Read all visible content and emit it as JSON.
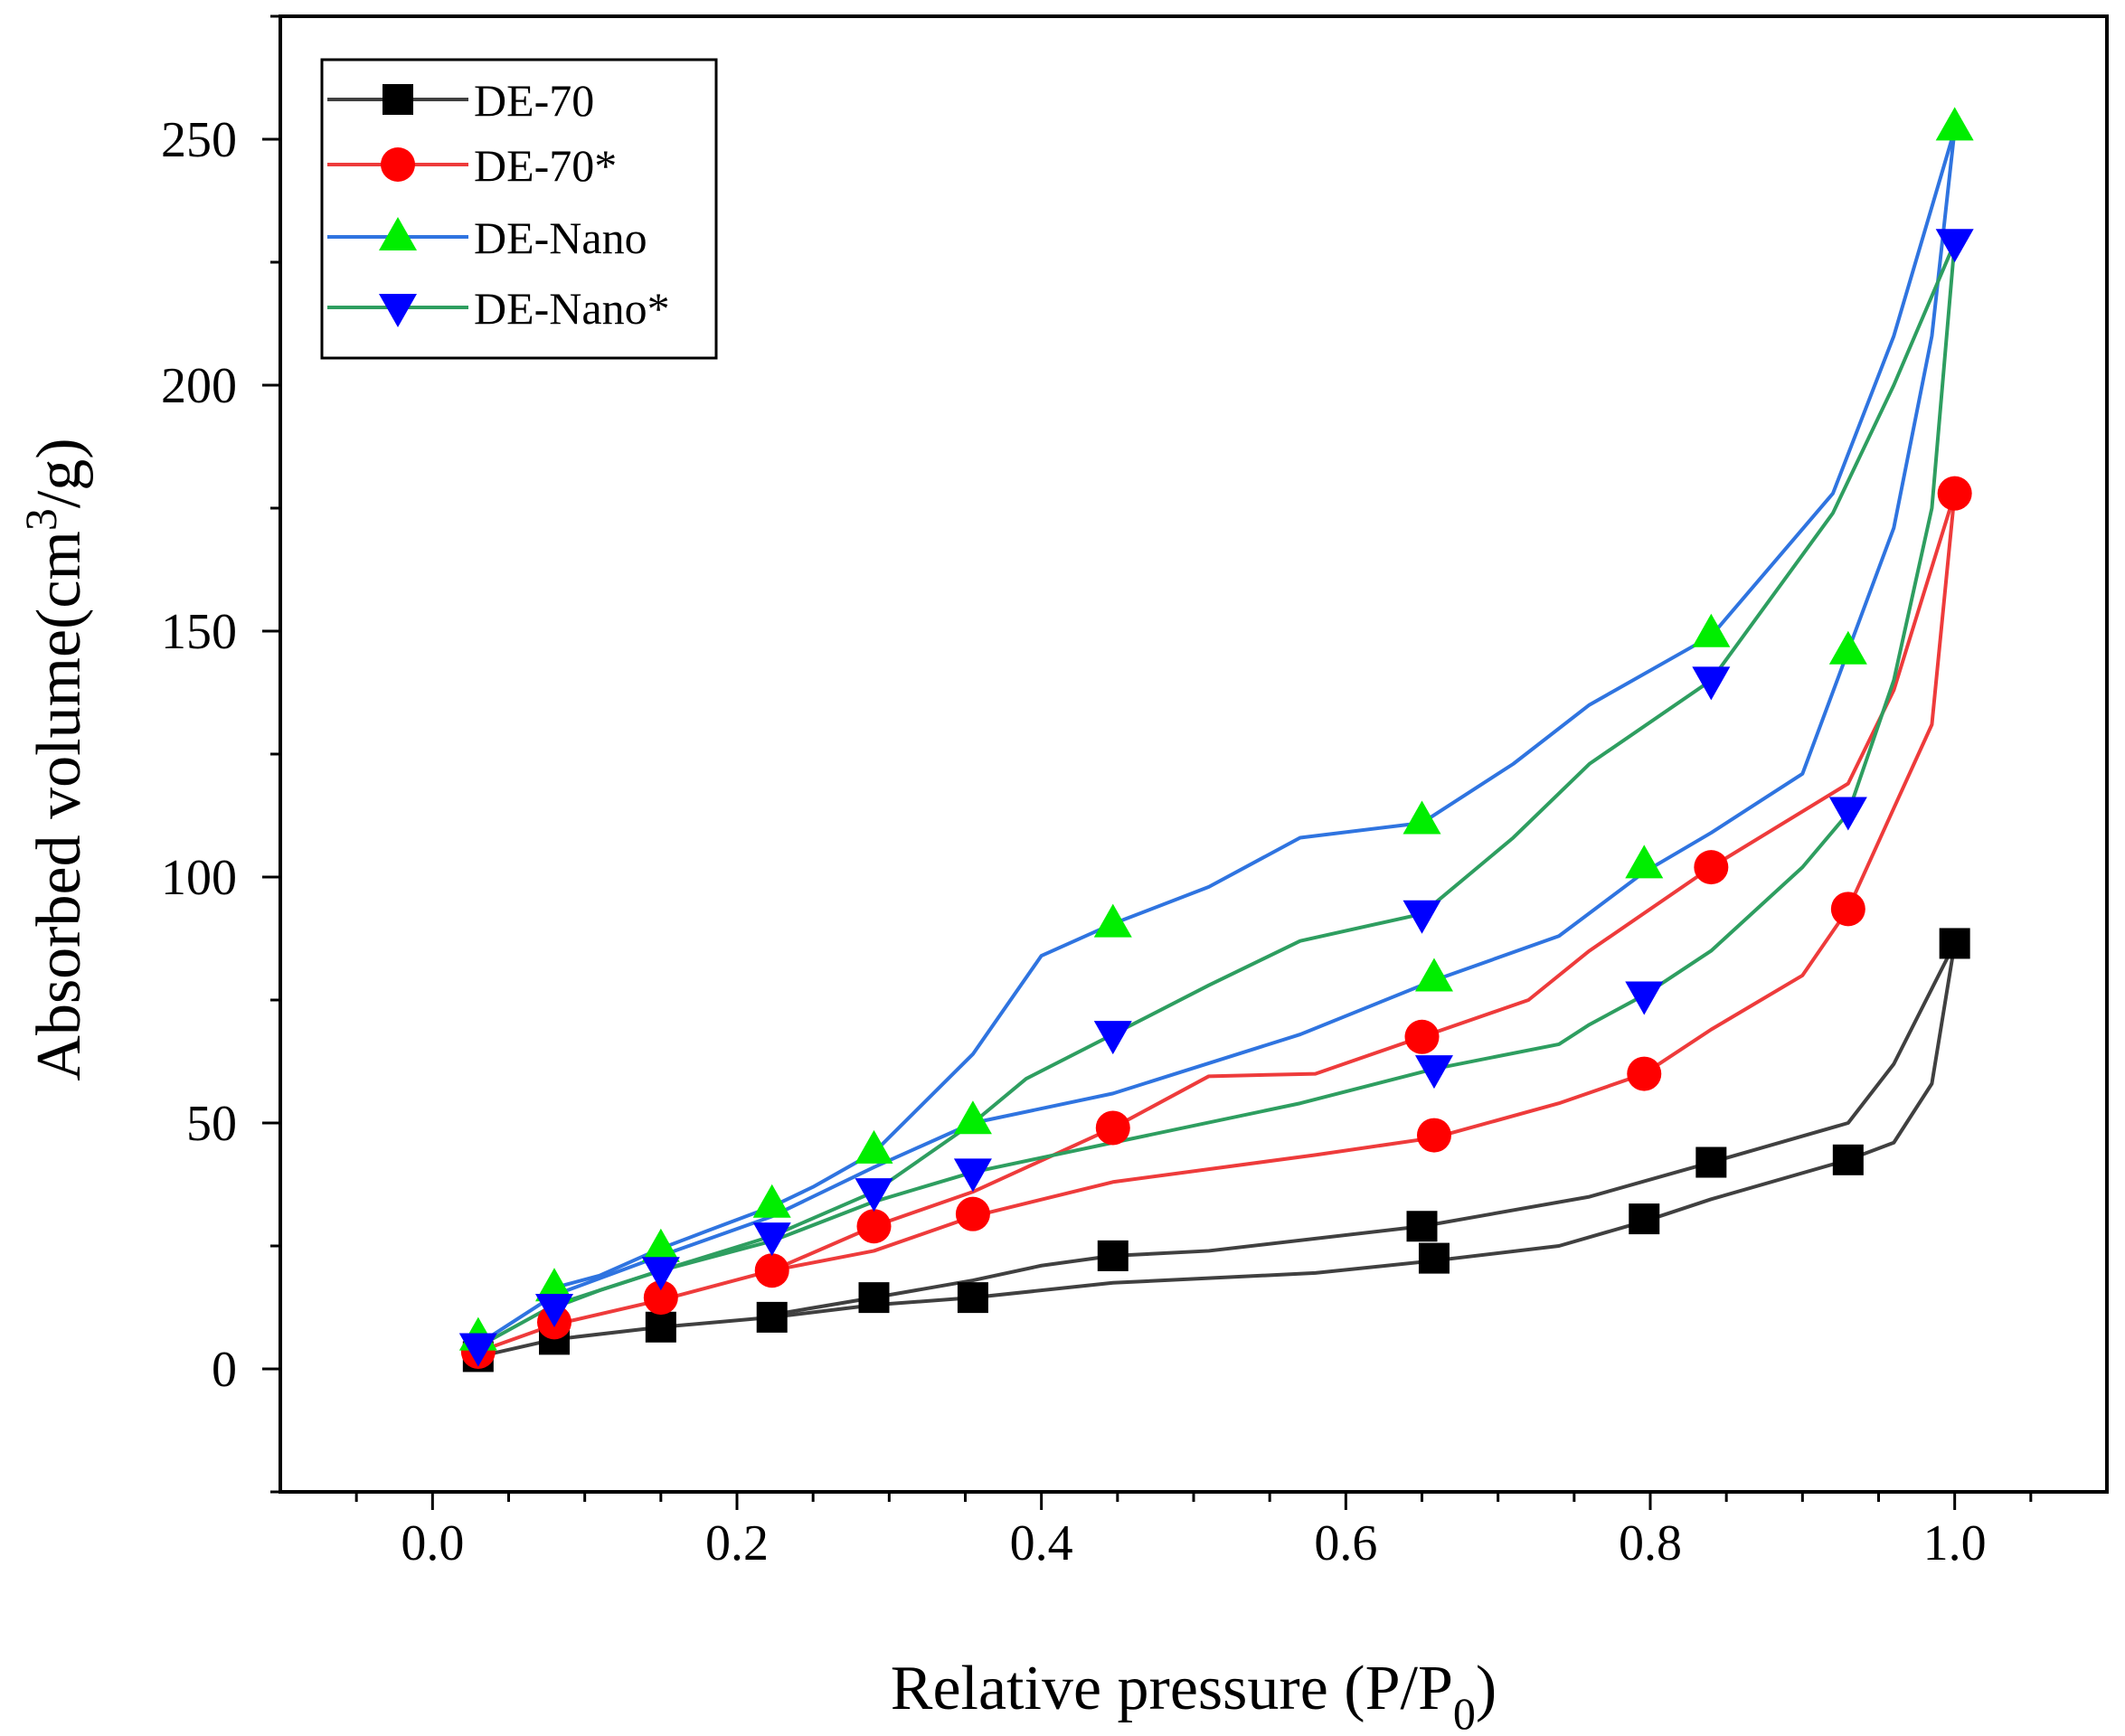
{
  "chart_data": {
    "type": "line",
    "title": "",
    "xlabel": "Relative pressure (P/P",
    "xlabel_sub": "0",
    "xlabel_end": ")",
    "ylabel": "Absorbed volume(cm",
    "ylabel_sup": "3",
    "ylabel_end": "/g)",
    "xlim": [
      -0.1,
      1.1
    ],
    "ylim": [
      -25,
      275
    ],
    "xticks": [
      0.0,
      0.2,
      0.4,
      0.6,
      0.8,
      1.0
    ],
    "xtick_labels": [
      "0.0",
      "0.2",
      "0.4",
      "0.6",
      "0.8",
      "1.0"
    ],
    "yticks": [
      0,
      50,
      100,
      150,
      200,
      250
    ],
    "ytick_labels": [
      "0",
      "50",
      "100",
      "150",
      "200",
      "250"
    ],
    "grid": false,
    "legend_position": "top-left",
    "series": [
      {
        "name": "DE-70",
        "color": "#404040",
        "marker": "square",
        "marker_color": "#000000",
        "adsorption": [
          [
            0.03,
            2.5
          ],
          [
            0.08,
            6
          ],
          [
            0.15,
            8.5
          ],
          [
            0.223,
            10.5
          ],
          [
            0.29,
            13
          ],
          [
            0.355,
            14.5
          ],
          [
            0.447,
            17.5
          ],
          [
            0.58,
            19.5
          ],
          [
            0.658,
            22
          ],
          [
            0.74,
            25
          ],
          [
            0.796,
            30
          ],
          [
            0.84,
            34.5
          ],
          [
            0.93,
            42.5
          ],
          [
            0.96,
            46
          ],
          [
            0.985,
            58
          ],
          [
            1.0,
            86.5
          ]
        ],
        "desorption": [
          [
            1.0,
            86.5
          ],
          [
            0.96,
            62
          ],
          [
            0.93,
            50
          ],
          [
            0.84,
            42
          ],
          [
            0.76,
            35
          ],
          [
            0.65,
            29
          ],
          [
            0.51,
            24
          ],
          [
            0.447,
            23
          ],
          [
            0.4,
            21
          ],
          [
            0.355,
            18
          ],
          [
            0.29,
            14.5
          ],
          [
            0.223,
            11
          ]
        ],
        "markers": [
          [
            0.03,
            2.5
          ],
          [
            0.08,
            6
          ],
          [
            0.15,
            8.5
          ],
          [
            0.223,
            10.5
          ],
          [
            0.29,
            14.5
          ],
          [
            0.355,
            14.5
          ],
          [
            0.447,
            23
          ],
          [
            0.65,
            29
          ],
          [
            0.658,
            22.5
          ],
          [
            0.796,
            30.5
          ],
          [
            0.84,
            42
          ],
          [
            0.93,
            42.5
          ],
          [
            1.0,
            86.5
          ]
        ]
      },
      {
        "name": "DE-70*",
        "color": "#ee3b3b",
        "marker": "circle",
        "marker_color": "#ff0000",
        "adsorption": [
          [
            0.03,
            3.5
          ],
          [
            0.08,
            9
          ],
          [
            0.15,
            14
          ],
          [
            0.223,
            20
          ],
          [
            0.29,
            24
          ],
          [
            0.355,
            31
          ],
          [
            0.447,
            38
          ],
          [
            0.58,
            43.5
          ],
          [
            0.658,
            47
          ],
          [
            0.74,
            54
          ],
          [
            0.796,
            60
          ],
          [
            0.84,
            69
          ],
          [
            0.9,
            80
          ],
          [
            0.93,
            93.5
          ],
          [
            0.96,
            114
          ],
          [
            0.985,
            131
          ],
          [
            1.0,
            178
          ]
        ],
        "desorption": [
          [
            1.0,
            178
          ],
          [
            0.96,
            138
          ],
          [
            0.93,
            119
          ],
          [
            0.84,
            102
          ],
          [
            0.76,
            85
          ],
          [
            0.72,
            75
          ],
          [
            0.65,
            67.5
          ],
          [
            0.58,
            60
          ],
          [
            0.51,
            59.5
          ],
          [
            0.447,
            49
          ],
          [
            0.355,
            36
          ],
          [
            0.29,
            29
          ],
          [
            0.223,
            20
          ]
        ],
        "markers": [
          [
            0.03,
            3.5
          ],
          [
            0.08,
            9.5
          ],
          [
            0.15,
            14.5
          ],
          [
            0.223,
            20
          ],
          [
            0.29,
            29
          ],
          [
            0.355,
            31.5
          ],
          [
            0.447,
            49
          ],
          [
            0.65,
            67.5
          ],
          [
            0.658,
            47.5
          ],
          [
            0.796,
            60
          ],
          [
            0.84,
            102
          ],
          [
            0.93,
            93.5
          ],
          [
            1.0,
            178
          ]
        ]
      },
      {
        "name": "DE-Nano",
        "color": "#2f74e0",
        "marker": "triangle-up",
        "marker_color": "#00ee00",
        "adsorption": [
          [
            0.03,
            5
          ],
          [
            0.08,
            15
          ],
          [
            0.15,
            23
          ],
          [
            0.223,
            31
          ],
          [
            0.29,
            41
          ],
          [
            0.355,
            50
          ],
          [
            0.447,
            56
          ],
          [
            0.57,
            68
          ],
          [
            0.658,
            79
          ],
          [
            0.74,
            88
          ],
          [
            0.796,
            101
          ],
          [
            0.84,
            109
          ],
          [
            0.9,
            121
          ],
          [
            0.93,
            146
          ],
          [
            0.96,
            171
          ],
          [
            0.985,
            210
          ],
          [
            1.0,
            252
          ]
        ],
        "desorption": [
          [
            1.0,
            252
          ],
          [
            0.96,
            210
          ],
          [
            0.92,
            178
          ],
          [
            0.84,
            149
          ],
          [
            0.76,
            135
          ],
          [
            0.71,
            123
          ],
          [
            0.65,
            111
          ],
          [
            0.57,
            108
          ],
          [
            0.51,
            98
          ],
          [
            0.447,
            90.5
          ],
          [
            0.4,
            84
          ],
          [
            0.355,
            64
          ],
          [
            0.29,
            44
          ],
          [
            0.25,
            37
          ],
          [
            0.223,
            33
          ],
          [
            0.18,
            28
          ],
          [
            0.15,
            24.5
          ],
          [
            0.11,
            19
          ],
          [
            0.08,
            16.5
          ]
        ],
        "markers": [
          [
            0.03,
            6.5
          ],
          [
            0.08,
            16.5
          ],
          [
            0.15,
            24.5
          ],
          [
            0.223,
            33.5
          ],
          [
            0.29,
            44.5
          ],
          [
            0.355,
            50.5
          ],
          [
            0.447,
            90.5
          ],
          [
            0.65,
            111.5
          ],
          [
            0.658,
            79.5
          ],
          [
            0.796,
            102.5
          ],
          [
            0.84,
            149.5
          ],
          [
            0.93,
            146
          ],
          [
            1.0,
            252.5
          ]
        ]
      },
      {
        "name": "DE-Nano*",
        "color": "#2e9e60",
        "marker": "triangle-down",
        "marker_color": "#0000ff",
        "adsorption": [
          [
            0.03,
            4.5
          ],
          [
            0.08,
            13
          ],
          [
            0.15,
            20
          ],
          [
            0.223,
            26
          ],
          [
            0.29,
            34
          ],
          [
            0.355,
            40
          ],
          [
            0.447,
            46
          ],
          [
            0.57,
            54
          ],
          [
            0.658,
            61
          ],
          [
            0.74,
            66
          ],
          [
            0.76,
            70
          ],
          [
            0.796,
            76
          ],
          [
            0.84,
            85
          ],
          [
            0.9,
            102
          ],
          [
            0.93,
            113
          ],
          [
            0.96,
            140
          ],
          [
            0.985,
            175
          ],
          [
            1.0,
            229
          ]
        ],
        "desorption": [
          [
            1.0,
            229
          ],
          [
            0.96,
            200
          ],
          [
            0.92,
            174
          ],
          [
            0.84,
            140
          ],
          [
            0.76,
            123
          ],
          [
            0.71,
            108
          ],
          [
            0.65,
            92.5
          ],
          [
            0.57,
            87
          ],
          [
            0.51,
            78
          ],
          [
            0.447,
            68
          ],
          [
            0.39,
            59
          ],
          [
            0.355,
            50
          ],
          [
            0.29,
            36
          ],
          [
            0.223,
            27
          ],
          [
            0.15,
            20
          ],
          [
            0.11,
            16
          ],
          [
            0.08,
            12.5
          ]
        ],
        "markers": [
          [
            0.03,
            4.5
          ],
          [
            0.08,
            12.5
          ],
          [
            0.15,
            20
          ],
          [
            0.223,
            27
          ],
          [
            0.29,
            36
          ],
          [
            0.355,
            40
          ],
          [
            0.447,
            68
          ],
          [
            0.65,
            92.5
          ],
          [
            0.658,
            61
          ],
          [
            0.796,
            76
          ],
          [
            0.84,
            140
          ],
          [
            0.93,
            113.5
          ],
          [
            1.0,
            229
          ]
        ]
      }
    ]
  }
}
